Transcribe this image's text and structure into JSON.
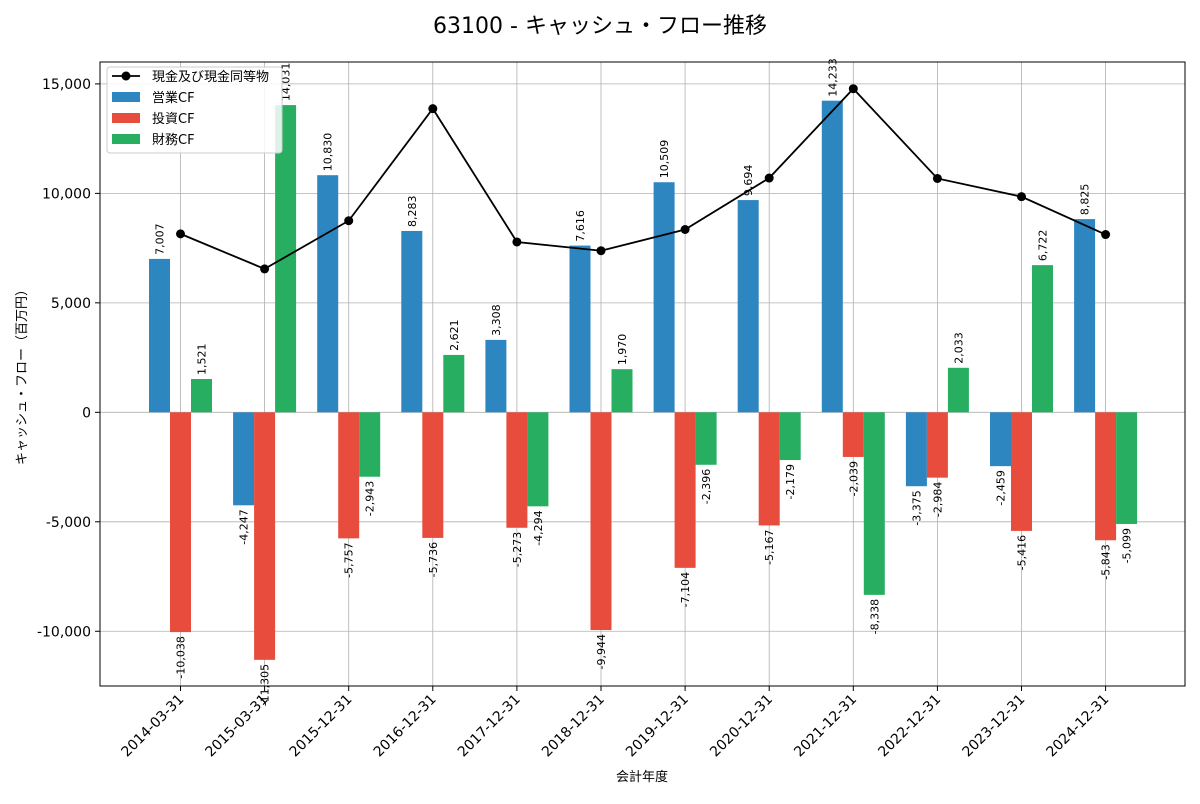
{
  "chart_data": {
    "type": "bar",
    "title": "63100 - キャッシュ・フロー推移",
    "xlabel": "会計年度",
    "ylabel": "キャッシュ・フロー（百万円）",
    "categories": [
      "2014-03-31",
      "2015-03-31",
      "2015-12-31",
      "2016-12-31",
      "2017-12-31",
      "2018-12-31",
      "2019-12-31",
      "2020-12-31",
      "2021-12-31",
      "2022-12-31",
      "2023-12-31",
      "2024-12-31"
    ],
    "series": [
      {
        "name": "営業CF",
        "kind": "bar",
        "color": "#2e86c1",
        "values": [
          7007,
          -4247,
          10830,
          8283,
          3308,
          7616,
          10509,
          9694,
          14233,
          -3375,
          -2459,
          8825
        ]
      },
      {
        "name": "投資CF",
        "kind": "bar",
        "color": "#e74c3c",
        "values": [
          -10038,
          -11305,
          -5757,
          -5736,
          -5273,
          -9944,
          -7104,
          -5167,
          -2039,
          -2984,
          -5416,
          -5843
        ]
      },
      {
        "name": "財務CF",
        "kind": "bar",
        "color": "#27ae60",
        "values": [
          1521,
          14031,
          -2943,
          2621,
          -4294,
          1970,
          -2396,
          -2179,
          -8338,
          2033,
          6722,
          -5099
        ]
      },
      {
        "name": "現金及び現金同等物",
        "kind": "line",
        "color": "#000000",
        "values": [
          8150,
          6550,
          8750,
          13870,
          7780,
          7380,
          8350,
          10700,
          14780,
          10680,
          9850,
          8120
        ]
      }
    ],
    "ylim": [
      -12500,
      16000
    ],
    "yticks": [
      -10000,
      -5000,
      0,
      5000,
      10000,
      15000
    ],
    "ytick_labels": [
      "-10,000",
      "-5,000",
      "0",
      "5,000",
      "10,000",
      "15,000"
    ],
    "bar_value_labels": [
      [
        "7,007",
        "-4,247",
        "10,830",
        "8,283",
        "3,308",
        "7,616",
        "10,509",
        "9,694",
        "14,233",
        "-3,375",
        "-2,459",
        "8,825"
      ],
      [
        "-10,038",
        "-11,305",
        "-5,757",
        "-5,736",
        "-5,273",
        "-9,944",
        "-7,104",
        "-5,167",
        "-2,039",
        "-2,984",
        "-5,416",
        "-5,843"
      ],
      [
        "1,521",
        "14,031",
        "-2,943",
        "2,621",
        "-4,294",
        "1,970",
        "-2,396",
        "-2,179",
        "-8,338",
        "2,033",
        "6,722",
        "-5,099"
      ]
    ],
    "grid": true,
    "legend_position": "top-left"
  }
}
